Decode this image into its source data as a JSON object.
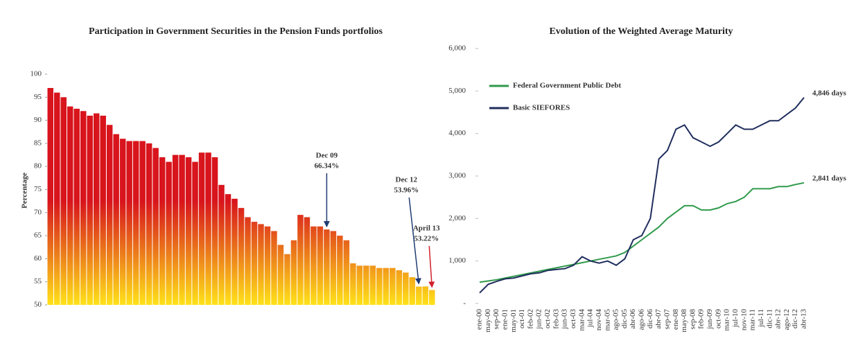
{
  "chart_data": [
    {
      "type": "bar",
      "title": "Participation in Government Securities in the Pension Funds portfolios",
      "ylabel": "Percentage",
      "values": [
        97,
        96,
        95,
        93,
        92.5,
        92,
        91,
        91.5,
        91,
        89,
        87,
        86,
        85.5,
        85.5,
        85.5,
        85,
        84,
        82,
        81,
        82.5,
        82.5,
        82,
        81,
        83,
        83,
        82,
        76,
        74,
        73,
        71,
        69,
        68,
        67.5,
        67,
        66,
        63,
        61,
        64,
        69.5,
        69,
        67,
        67,
        66.34,
        66,
        65,
        64,
        59,
        58.5,
        58.5,
        58.5,
        58,
        58,
        58,
        57.5,
        57,
        56,
        53.96,
        54,
        53.22
      ],
      "value_labels": [
        null,
        null,
        null,
        null,
        null,
        null,
        null,
        null,
        null,
        null,
        null,
        null,
        null,
        null,
        null,
        null,
        null,
        null,
        null,
        null,
        null,
        null,
        null,
        null,
        null,
        null,
        null,
        null,
        null,
        null,
        null,
        null,
        null,
        null,
        null,
        null,
        null,
        null,
        null,
        null,
        null,
        null,
        "66.34%",
        null,
        null,
        null,
        null,
        null,
        null,
        null,
        null,
        null,
        null,
        null,
        null,
        null,
        "53.96%",
        null,
        "53.22%"
      ],
      "annotations": [
        "Dec 09",
        "Dec 12",
        "April 13"
      ],
      "annotation_colors": [
        "#1f3b73",
        "#1f3b73",
        "#d0202a"
      ],
      "color_top": "#d8141c",
      "color_bottom": "#ffe21a",
      "ylim": [
        50,
        100
      ],
      "yticks": [
        50,
        55,
        60,
        65,
        70,
        75,
        80,
        85,
        90,
        95,
        100
      ]
    },
    {
      "type": "line",
      "title": "Evolution of the Weighted Average Maturity",
      "categories": [
        "ene-00",
        "may-00",
        "sep-00",
        "ene-01",
        "may-01",
        "oct-01",
        "feb-02",
        "jun-02",
        "oct-02",
        "feb-03",
        "jun-03",
        "oct-03",
        "mar-04",
        "jul-04",
        "nov-04",
        "mar-05",
        "ago-05",
        "dic-05",
        "abr-06",
        "ago-06",
        "dic-06",
        "abr-07",
        "sep-07",
        "ene-08",
        "may-08",
        "sep-08",
        "feb-09",
        "jun-09",
        "oct-09",
        "mar-10",
        "jul-10",
        "nov-10",
        "mar-11",
        "jul-11",
        "dic-11",
        "abr-12",
        "ago-12",
        "dic-12",
        "abr-13"
      ],
      "series": [
        {
          "name": "Federal Government Public Debt",
          "color": "#2e9a4a",
          "values": [
            500,
            530,
            560,
            600,
            640,
            680,
            720,
            760,
            800,
            840,
            880,
            920,
            960,
            1000,
            1040,
            1080,
            1120,
            1200,
            1350,
            1500,
            1650,
            1800,
            2000,
            2150,
            2300,
            2300,
            2200,
            2200,
            2250,
            2350,
            2400,
            2500,
            2700,
            2700,
            2700,
            2750,
            2750,
            2800,
            2841
          ],
          "value_labels": [
            null,
            null,
            null,
            null,
            null,
            null,
            null,
            null,
            null,
            null,
            null,
            null,
            null,
            null,
            null,
            null,
            null,
            null,
            null,
            null,
            null,
            null,
            null,
            null,
            null,
            null,
            null,
            null,
            null,
            null,
            null,
            null,
            null,
            null,
            null,
            null,
            null,
            null,
            "2,841 days"
          ]
        },
        {
          "name": "Basic SIEFORES",
          "color": "#1f2d5c",
          "values": [
            250,
            450,
            520,
            580,
            600,
            650,
            700,
            720,
            780,
            800,
            820,
            900,
            1100,
            1000,
            950,
            1000,
            900,
            1050,
            1500,
            1600,
            2000,
            3400,
            3600,
            4100,
            4200,
            3900,
            3800,
            3700,
            3800,
            4000,
            4200,
            4100,
            4100,
            4200,
            4300,
            4300,
            4450,
            4600,
            4846
          ],
          "value_labels": [
            null,
            null,
            null,
            null,
            null,
            null,
            null,
            null,
            null,
            null,
            null,
            null,
            null,
            null,
            null,
            null,
            null,
            null,
            null,
            null,
            null,
            null,
            null,
            null,
            null,
            null,
            null,
            null,
            null,
            null,
            null,
            null,
            null,
            null,
            null,
            null,
            null,
            null,
            "4,846 days"
          ]
        }
      ],
      "ylim": [
        0,
        6000
      ],
      "yticks": [
        {
          "value": 0,
          "label": "-"
        },
        {
          "value": 1000,
          "label": "1,000"
        },
        {
          "value": 2000,
          "label": "2,000"
        },
        {
          "value": 3000,
          "label": "3,000"
        },
        {
          "value": 4000,
          "label": "4,000"
        },
        {
          "value": 5000,
          "label": "5,000"
        },
        {
          "value": 6000,
          "label": "6,000"
        }
      ]
    }
  ]
}
